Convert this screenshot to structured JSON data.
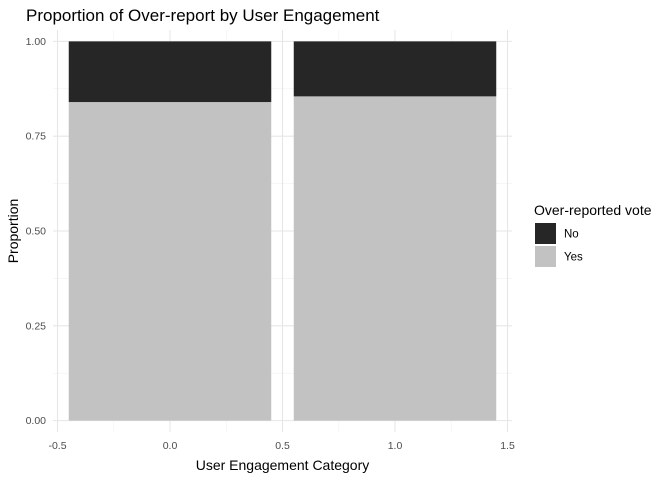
{
  "chart_data": {
    "type": "bar",
    "stacked": true,
    "title": "Proportion of Over-report by User Engagement",
    "xlabel": "User Engagement Category",
    "ylabel": "Proportion",
    "x": [
      0,
      1
    ],
    "bar_width": 0.9,
    "series": [
      {
        "name": "Yes",
        "values": [
          0.84,
          0.855
        ],
        "color": "#c2c2c2"
      },
      {
        "name": "No",
        "values": [
          0.16,
          0.145
        ],
        "color": "#262626"
      }
    ],
    "xlim": [
      -0.52,
      1.52
    ],
    "ylim": [
      -0.03,
      1.03
    ],
    "x_ticks": [
      "-0.5",
      "0.0",
      "0.5",
      "1.0",
      "1.5"
    ],
    "x_tick_values": [
      -0.5,
      0.0,
      0.5,
      1.0,
      1.5
    ],
    "y_ticks": [
      "0.00",
      "0.25",
      "0.50",
      "0.75",
      "1.00"
    ],
    "y_tick_values": [
      0,
      0.25,
      0.5,
      0.75,
      1.0
    ],
    "grid": true,
    "legend": {
      "title": "Over-reported vote",
      "placement": "right",
      "entries": [
        {
          "label": "No",
          "color": "#262626"
        },
        {
          "label": "Yes",
          "color": "#c2c2c2"
        }
      ]
    }
  }
}
